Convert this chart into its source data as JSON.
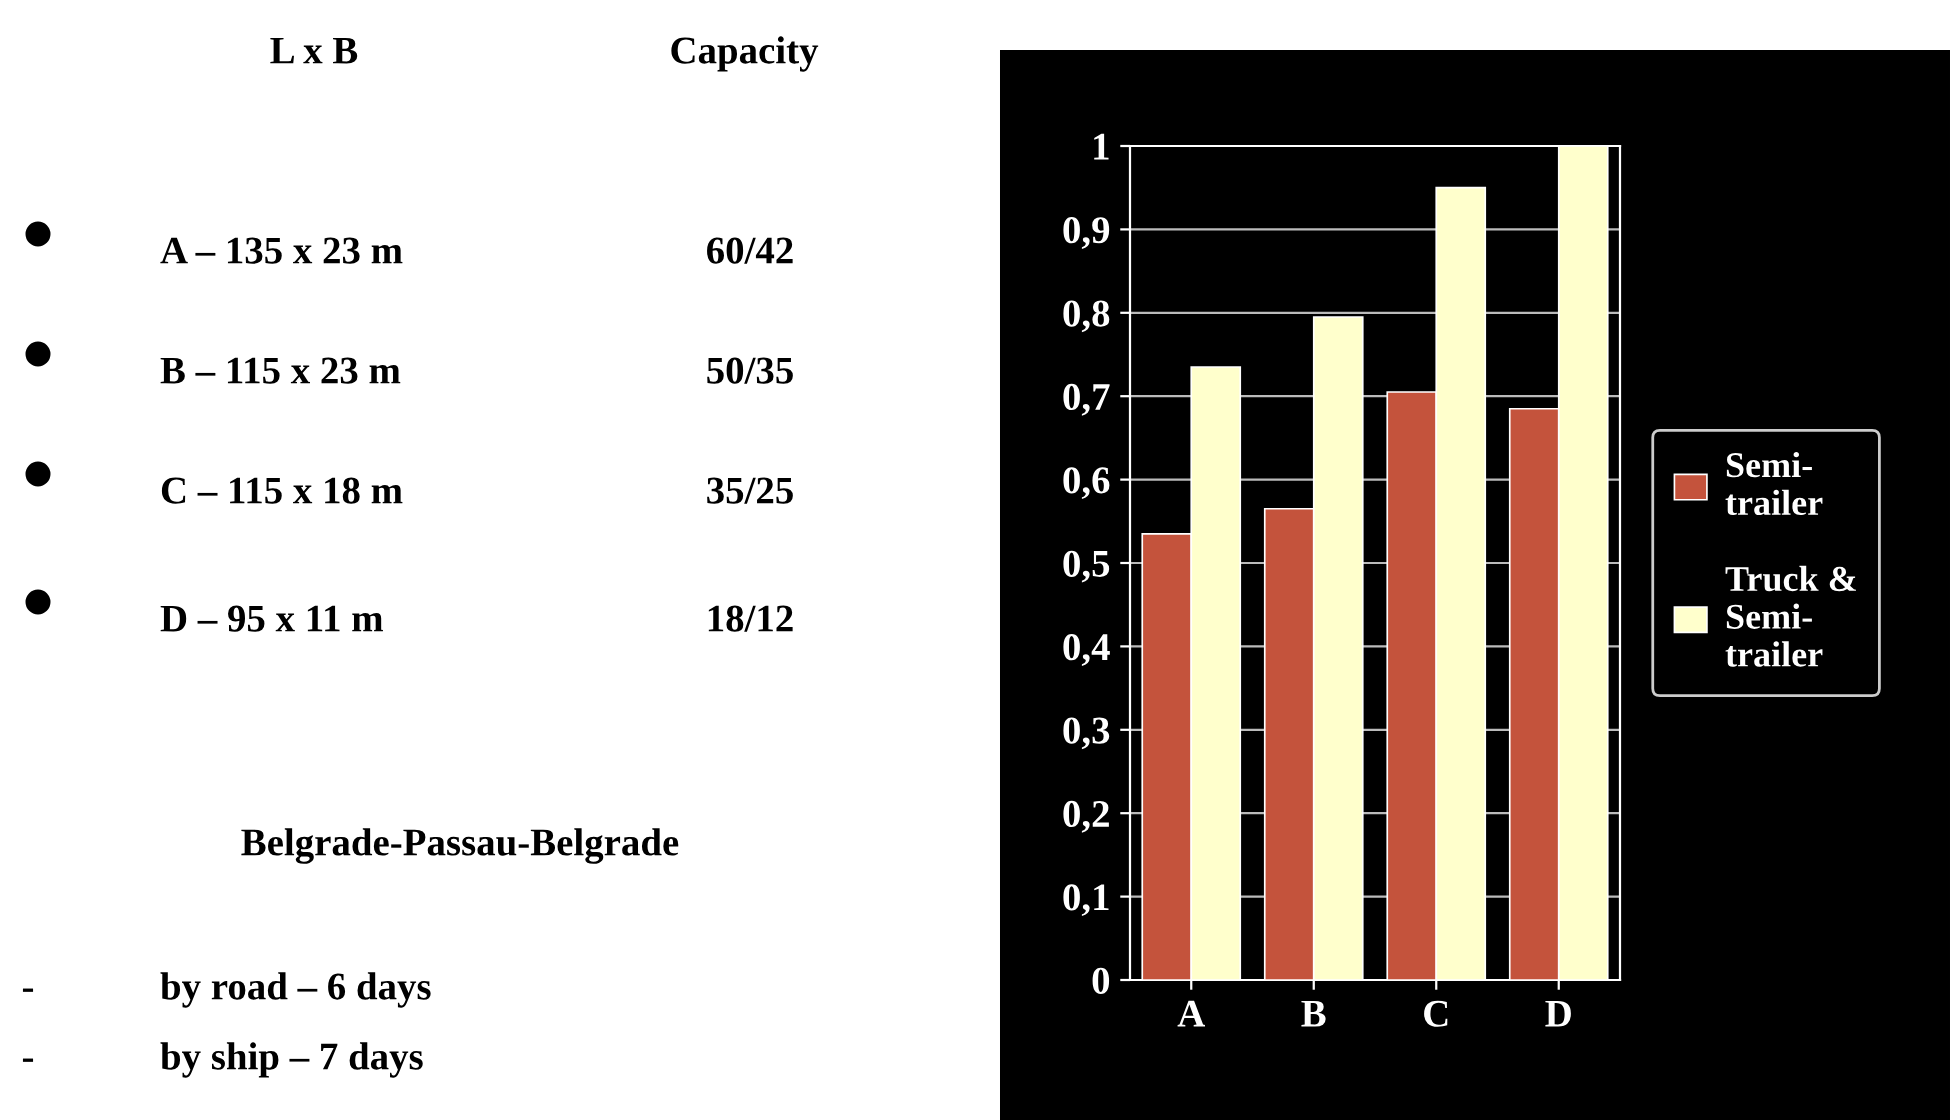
{
  "chart_data": [
    {
      "type": "other",
      "annotations": [
        "L x B",
        "Capacity",
        "A – 135 x 23 m",
        "60/42",
        "B – 115 x 23 m",
        "50/35",
        "C – 115 x 18 m",
        "35/25",
        "D – 95 x 11 m",
        "18/12",
        "Belgrade-Passau-Belgrade",
        "-",
        "by road – 6 days",
        "-",
        "by ship – 7 days"
      ]
    },
    {
      "type": "bar",
      "categories": [
        "A",
        "B",
        "C",
        "D"
      ],
      "series": [
        {
          "name": "Semi-trailer",
          "color": "#c4533c",
          "values": [
            0.535,
            0.565,
            0.705,
            0.685
          ]
        },
        {
          "name": "Truck & Semi-trailer",
          "color": "#ffffcc",
          "values": [
            0.735,
            0.795,
            0.95,
            1.0
          ]
        }
      ],
      "ylim": [
        0,
        1
      ],
      "yticks": [
        0,
        {
          "value": 0.1,
          "label": "0,1"
        },
        {
          "value": 0.2,
          "label": "0,2"
        },
        {
          "value": 0.3,
          "label": "0,3"
        },
        {
          "value": 0.4,
          "label": "0,4"
        },
        {
          "value": 0.5,
          "label": "0,5"
        },
        {
          "value": 0.6,
          "label": "0,6"
        },
        {
          "value": 0.7,
          "label": "0,7"
        },
        {
          "value": 0.8,
          "label": "0,8"
        },
        {
          "value": 0.9,
          "label": "0,9"
        },
        1
      ],
      "grid": "y",
      "legend": "right"
    }
  ]
}
